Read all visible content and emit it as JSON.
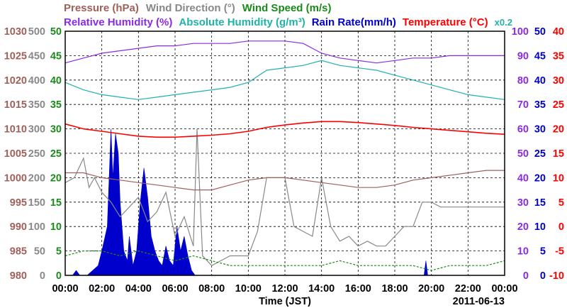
{
  "chart_data": {
    "type": "line",
    "x_ticks": [
      "00:00",
      "02:00",
      "04:00",
      "06:00",
      "08:00",
      "10:00",
      "12:00",
      "14:00",
      "16:00",
      "18:00",
      "20:00",
      "22:00",
      "00:00"
    ],
    "x_label": "Time (JST)",
    "date_label": "2011-06-13",
    "legend_row1": [
      {
        "text": "Pressure (hPa)",
        "color": "#a0605a"
      },
      {
        "text": "Wind Direction (°)",
        "color": "#888888"
      },
      {
        "text": "Wind Speed (m/s)",
        "color": "#1a8a1a"
      }
    ],
    "legend_row2": [
      {
        "text": "Relative Humidity (%)",
        "color": "#8a2be2"
      },
      {
        "text": "Absolute Humidity (g/m³)",
        "color": "#20b2aa"
      },
      {
        "text": "Rain Rate(mm/h)",
        "color": "#0000cc"
      },
      {
        "text": "Temperature (°C)",
        "color": "#ff0000"
      },
      {
        "text": "x0.2",
        "color": "#20b2aa"
      }
    ],
    "left_axes": [
      {
        "name": "Pressure (hPa)",
        "color": "#a0605a",
        "range": [
          980,
          1030
        ],
        "ticks": [
          "1030",
          "1025",
          "1020",
          "1015",
          "1010",
          "1005",
          "1000",
          "995",
          "990",
          "985",
          "980"
        ]
      },
      {
        "name": "Wind Direction (°)",
        "color": "#888888",
        "range": [
          0,
          500
        ],
        "ticks": [
          "500",
          "450",
          "400",
          "350",
          "300",
          "250",
          "200",
          "150",
          "100",
          "50",
          "0"
        ]
      },
      {
        "name": "Wind Speed (m/s)",
        "color": "#1a8a1a",
        "range": [
          0,
          50
        ],
        "ticks": [
          "50",
          "45",
          "40",
          "35",
          "30",
          "25",
          "20",
          "15",
          "10",
          "5",
          "0"
        ]
      }
    ],
    "right_axes": [
      {
        "name": "Relative Humidity (%)",
        "color": "#8a2be2",
        "range": [
          0,
          100
        ],
        "ticks": [
          "100",
          "90",
          "80",
          "70",
          "60",
          "50",
          "40",
          "30",
          "20",
          "10",
          "0"
        ]
      },
      {
        "name": "Rain Rate(mm/h)",
        "color": "#0000cc",
        "range": [
          0,
          50
        ],
        "ticks": [
          "50",
          "45",
          "40",
          "35",
          "30",
          "25",
          "20",
          "15",
          "10",
          "5",
          "0"
        ]
      },
      {
        "name": "Temperature (°C)",
        "color": "#ff0000",
        "range": [
          -10,
          40
        ],
        "ticks": [
          "40",
          "35",
          "30",
          "25",
          "20",
          "15",
          "10",
          "5",
          "0",
          "-5",
          "-10"
        ]
      }
    ],
    "series": [
      {
        "name": "Relative Humidity (%)",
        "color": "#8a2be2",
        "axis": "Relative Humidity (%)",
        "x": [
          0,
          1,
          2,
          3,
          4,
          5,
          6,
          7,
          8,
          9,
          10,
          11,
          12,
          13,
          14,
          15,
          16,
          17,
          18,
          19,
          20,
          21,
          22,
          23,
          24
        ],
        "y": [
          87,
          89,
          91,
          92,
          93,
          94,
          94,
          95,
          95,
          95,
          96,
          96,
          96,
          95,
          91,
          89,
          88,
          87,
          88,
          89,
          89,
          90,
          90,
          90,
          90
        ]
      },
      {
        "name": "Absolute Humidity (g/m³)",
        "color": "#20b2aa",
        "axis": "Relative Humidity (%)",
        "x": [
          0,
          1,
          2,
          3,
          4,
          5,
          6,
          7,
          8,
          9,
          10,
          11,
          12,
          13,
          14,
          15,
          16,
          17,
          18,
          19,
          20,
          21,
          22,
          23,
          24
        ],
        "y": [
          79,
          76,
          74,
          73,
          72,
          73,
          74,
          75,
          76,
          77,
          79,
          84,
          85,
          86,
          88,
          86,
          85,
          84,
          82,
          80,
          78,
          76,
          74,
          73,
          72
        ]
      },
      {
        "name": "Temperature (°C)",
        "color": "#ff0000",
        "axis": "Temperature (°C)",
        "x": [
          0,
          1,
          2,
          3,
          4,
          5,
          6,
          7,
          8,
          9,
          10,
          11,
          12,
          13,
          14,
          15,
          16,
          17,
          18,
          19,
          20,
          21,
          22,
          23,
          24
        ],
        "y": [
          21,
          20,
          19.5,
          19,
          18.5,
          18.3,
          18.3,
          18.5,
          18.7,
          19,
          19.5,
          20.3,
          20.8,
          21.2,
          21.5,
          21.5,
          21.3,
          21,
          20.7,
          20.3,
          20,
          19.7,
          19.4,
          19.1,
          18.9
        ]
      },
      {
        "name": "Pressure (hPa)",
        "color": "#a0605a",
        "axis": "Pressure (hPa)",
        "x": [
          0,
          1,
          2,
          3,
          4,
          5,
          6,
          7,
          8,
          9,
          10,
          11,
          12,
          13,
          14,
          15,
          16,
          17,
          18,
          19,
          20,
          21,
          22,
          23,
          24
        ],
        "y": [
          1001,
          1001,
          1000,
          999.5,
          999,
          998.5,
          998,
          997.5,
          997.5,
          998.5,
          999.5,
          1000,
          1000,
          999.5,
          999,
          998.5,
          998,
          998,
          998.5,
          999.5,
          1000,
          1000.5,
          1001,
          1001.5,
          1001.5
        ]
      },
      {
        "name": "Wind Direction (°)",
        "color": "#888888",
        "axis": "Wind Direction (°)",
        "x": [
          0,
          0.5,
          1,
          1.3,
          1.6,
          2,
          2.5,
          3,
          3.5,
          4,
          4.5,
          5,
          5.5,
          6,
          6.5,
          7,
          7.2,
          7.5,
          8,
          8.5,
          9,
          9.5,
          10,
          10.5,
          11,
          11.5,
          12,
          12.5,
          13,
          13.5,
          14,
          14.5,
          15,
          15.5,
          16,
          16.5,
          17,
          17.5,
          18,
          18.5,
          19,
          19.5,
          20,
          20.5,
          21,
          21.5,
          22,
          22.5,
          23,
          23.5,
          24
        ],
        "y": [
          190,
          200,
          240,
          180,
          200,
          170,
          150,
          120,
          140,
          160,
          110,
          130,
          170,
          80,
          120,
          60,
          300,
          40,
          20,
          30,
          40,
          40,
          40,
          90,
          200,
          200,
          200,
          100,
          90,
          80,
          200,
          100,
          70,
          80,
          60,
          70,
          60,
          60,
          80,
          100,
          100,
          150,
          150,
          140,
          140,
          140,
          140,
          140,
          140,
          140,
          140
        ]
      },
      {
        "name": "Wind Speed (m/s)",
        "color": "#1a8a1a",
        "axis": "Wind Speed (m/s)",
        "x": [
          0,
          1,
          2,
          3,
          4,
          5,
          6,
          7,
          8,
          9,
          10,
          11,
          12,
          13,
          14,
          15,
          16,
          17,
          18,
          19,
          20,
          21,
          22,
          23,
          24
        ],
        "y": [
          4,
          5,
          5,
          4,
          5,
          4,
          3,
          4,
          3,
          2,
          2,
          2,
          2,
          2,
          2,
          3,
          2,
          2,
          2,
          2,
          1,
          2,
          2,
          2,
          3
        ]
      },
      {
        "name": "Rain Rate(mm/h)",
        "color": "#0000cc",
        "axis": "Rain Rate(mm/h)",
        "type": "area",
        "x": [
          0,
          0.4,
          0.6,
          0.8,
          1.2,
          1.5,
          1.8,
          2.0,
          2.3,
          2.5,
          2.6,
          2.75,
          2.9,
          3.0,
          3.2,
          3.4,
          3.5,
          3.7,
          3.9,
          4.1,
          4.3,
          4.5,
          4.7,
          4.9,
          5.1,
          5.3,
          5.5,
          5.7,
          5.9,
          6.1,
          6.3,
          6.5,
          6.7,
          6.9,
          7.1,
          19.6,
          19.7,
          19.8,
          24
        ],
        "y": [
          0,
          0,
          1,
          0,
          0,
          1,
          2,
          5,
          10,
          30,
          20,
          29,
          25,
          15,
          5,
          3,
          8,
          2,
          5,
          15,
          22,
          16,
          8,
          5,
          3,
          2,
          6,
          3,
          2,
          10,
          5,
          8,
          4,
          1,
          0,
          0,
          3,
          0,
          0
        ]
      }
    ]
  }
}
